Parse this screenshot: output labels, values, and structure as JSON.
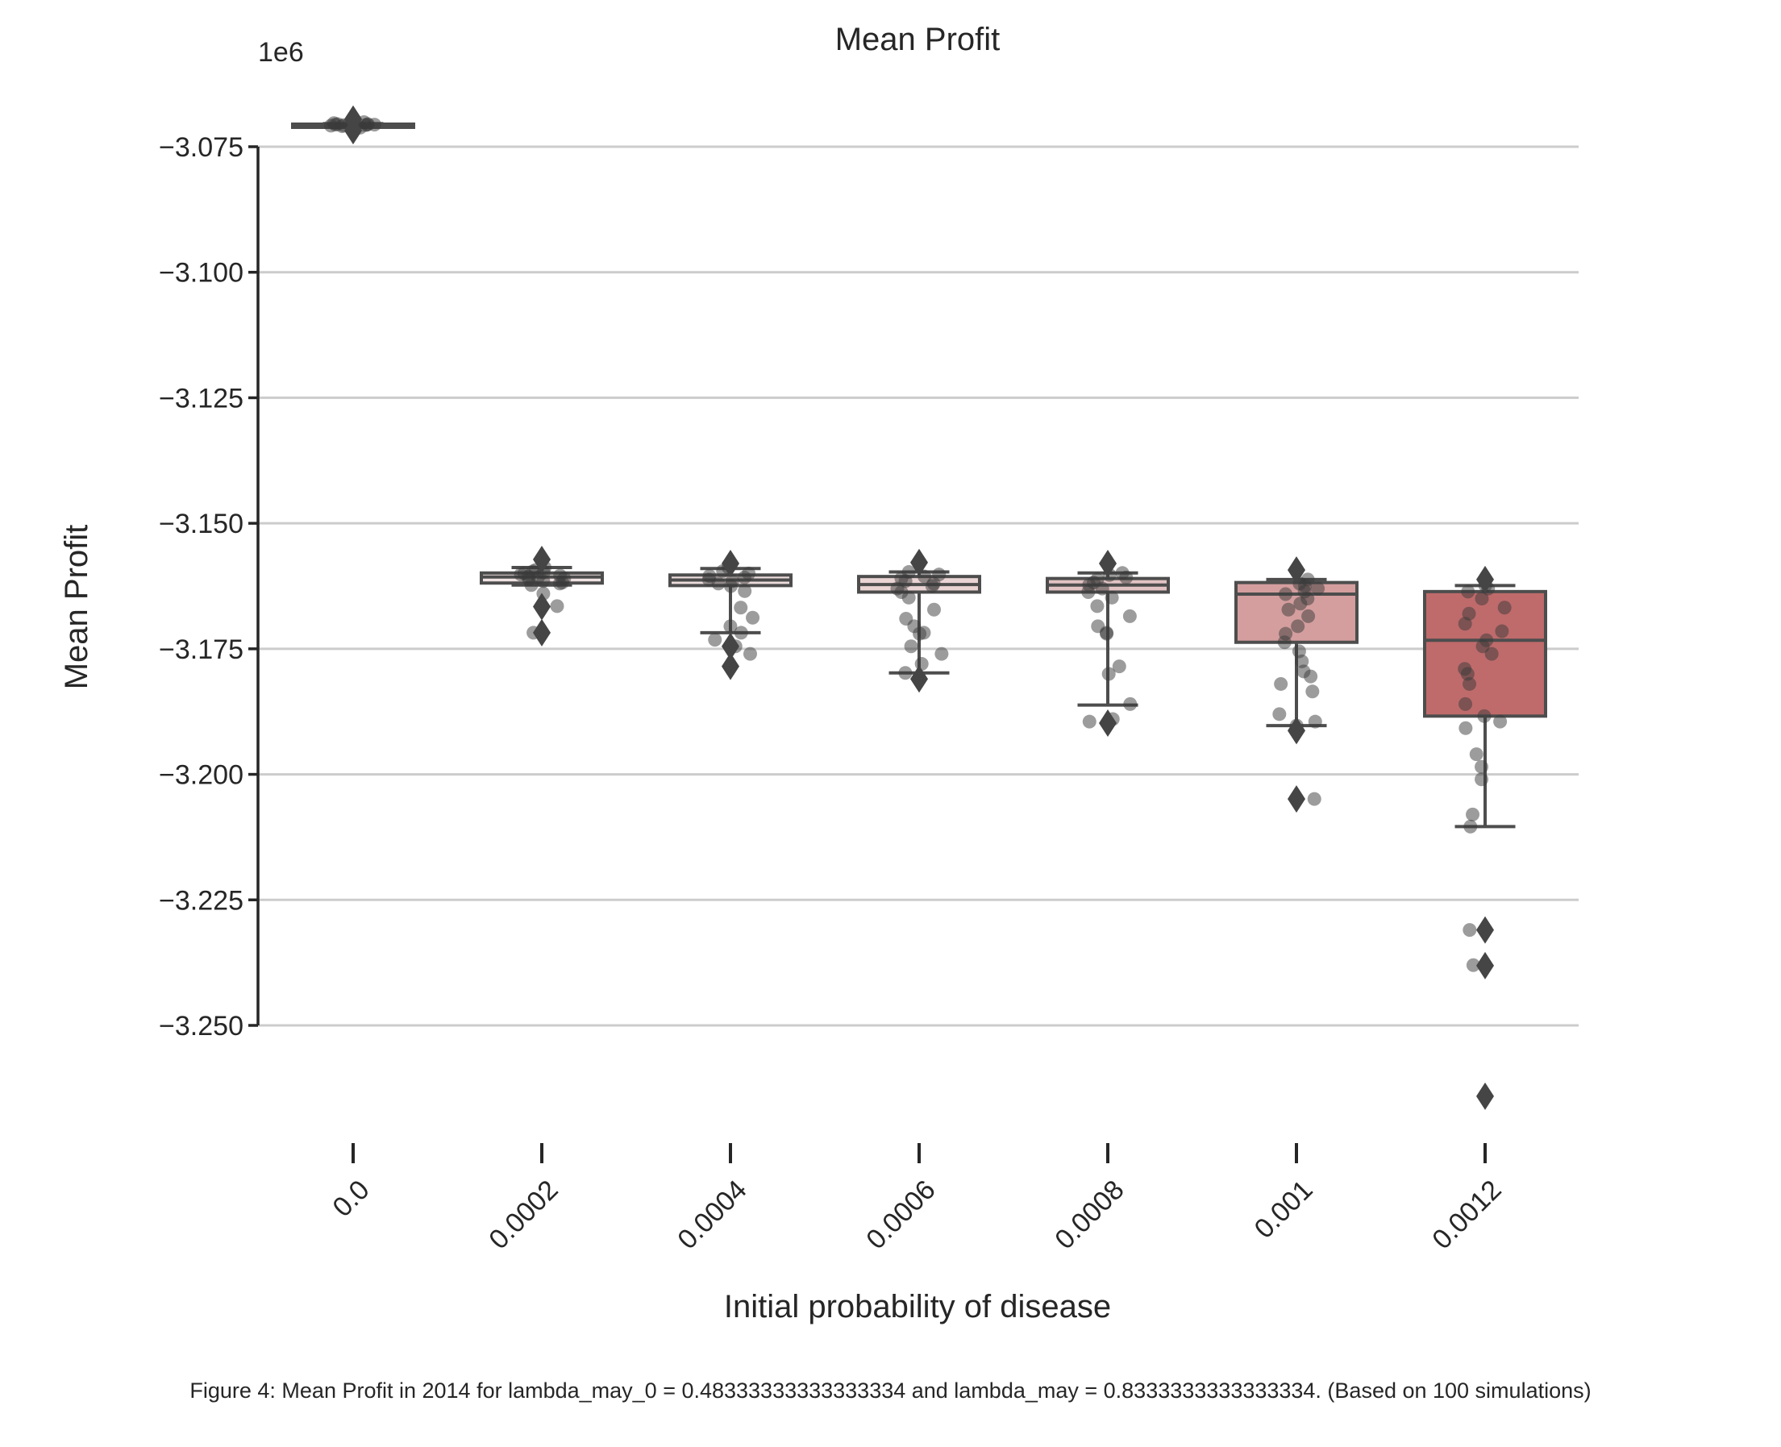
{
  "chart_data": {
    "type": "box",
    "title": "Mean Profit",
    "xlabel": "Initial probability of disease",
    "ylabel": "Mean Profit",
    "y_offset_text": "1e6",
    "ylim": [
      -3.2685,
      -3.0655
    ],
    "yticks": [
      -3.075,
      -3.1,
      -3.125,
      -3.15,
      -3.175,
      -3.2,
      -3.225,
      -3.25
    ],
    "ytick_labels": [
      "−3.075",
      "−3.100",
      "−3.125",
      "−3.150",
      "−3.175",
      "−3.200",
      "−3.225",
      "−3.250"
    ],
    "grid": "horizontal",
    "categories": [
      "0.0",
      "0.0002",
      "0.0004",
      "0.0006",
      "0.0008",
      "0.001",
      "0.0012"
    ],
    "boxes": [
      {
        "category": "0.0",
        "color": "#f5eeee",
        "q1": -3.0707,
        "median": -3.0706,
        "q3": -3.0705,
        "whisker_low": -3.0708,
        "whisker_high": -3.0704,
        "outliers": [
          -3.0695,
          -3.0718
        ],
        "points": [
          -3.0701,
          -3.0703,
          -3.0704,
          -3.0705,
          -3.0705,
          -3.0706,
          -3.0706,
          -3.0706,
          -3.0707,
          -3.0707,
          -3.0708,
          -3.0709,
          -3.0712,
          -3.0698
        ]
      },
      {
        "category": "0.0002",
        "color": "#f0e3e3",
        "q1": -3.1619,
        "median": -3.1607,
        "q3": -3.1599,
        "whisker_low": -3.1623,
        "whisker_high": -3.1588,
        "outliers": [
          -3.1572,
          -3.1666,
          -3.1718
        ],
        "points": [
          -3.1588,
          -3.1593,
          -3.1596,
          -3.1598,
          -3.16,
          -3.1602,
          -3.1604,
          -3.1606,
          -3.1608,
          -3.161,
          -3.1612,
          -3.1615,
          -3.1618,
          -3.162,
          -3.1623,
          -3.164,
          -3.1665,
          -3.1718
        ]
      },
      {
        "category": "0.0004",
        "color": "#ecdcdc",
        "q1": -3.1624,
        "median": -3.1613,
        "q3": -3.1603,
        "whisker_low": -3.1718,
        "whisker_high": -3.159,
        "outliers": [
          -3.158,
          -3.1745,
          -3.1785
        ],
        "points": [
          -3.1588,
          -3.1595,
          -3.16,
          -3.1605,
          -3.1608,
          -3.1612,
          -3.1615,
          -3.162,
          -3.1625,
          -3.1635,
          -3.1668,
          -3.1688,
          -3.1705,
          -3.1718,
          -3.1732,
          -3.1745,
          -3.176
        ]
      },
      {
        "category": "0.0006",
        "color": "#ead4d4",
        "q1": -3.1637,
        "median": -3.1622,
        "q3": -3.1606,
        "whisker_low": -3.1798,
        "whisker_high": -3.1597,
        "outliers": [
          -3.1578,
          -3.181
        ],
        "points": [
          -3.1597,
          -3.1602,
          -3.1606,
          -3.161,
          -3.1615,
          -3.162,
          -3.1625,
          -3.163,
          -3.1637,
          -3.1648,
          -3.1672,
          -3.169,
          -3.1705,
          -3.1718,
          -3.172,
          -3.1745,
          -3.176,
          -3.178,
          -3.1798
        ]
      },
      {
        "category": "0.0008",
        "color": "#e2c3c3",
        "q1": -3.1637,
        "median": -3.1623,
        "q3": -3.161,
        "whisker_low": -3.1862,
        "whisker_high": -3.1599,
        "outliers": [
          -3.158,
          -3.1898
        ],
        "points": [
          -3.1599,
          -3.1603,
          -3.1608,
          -3.1612,
          -3.1618,
          -3.1623,
          -3.163,
          -3.1637,
          -3.1648,
          -3.1665,
          -3.1685,
          -3.1705,
          -3.1718,
          -3.172,
          -3.1785,
          -3.18,
          -3.186,
          -3.189,
          -3.1895
        ]
      },
      {
        "category": "0.001",
        "color": "#d49e9e",
        "q1": -3.1737,
        "median": -3.1641,
        "q3": -3.1618,
        "whisker_low": -3.1903,
        "whisker_high": -3.1612,
        "outliers": [
          -3.1593,
          -3.1913,
          -3.2049
        ],
        "points": [
          -3.1612,
          -3.162,
          -3.1625,
          -3.163,
          -3.1636,
          -3.1641,
          -3.165,
          -3.166,
          -3.1672,
          -3.1685,
          -3.1705,
          -3.172,
          -3.1737,
          -3.1755,
          -3.1775,
          -3.1795,
          -3.1805,
          -3.182,
          -3.1835,
          -3.188,
          -3.1895,
          -3.1903,
          -3.2049
        ]
      },
      {
        "category": "0.0012",
        "color": "#bf6b6b",
        "q1": -3.1884,
        "median": -3.1733,
        "q3": -3.1636,
        "whisker_low": -3.2104,
        "whisker_high": -3.1624,
        "outliers": [
          -3.1612,
          -3.231,
          -3.2381,
          -3.2641
        ],
        "points": [
          -3.1624,
          -3.163,
          -3.1636,
          -3.165,
          -3.1668,
          -3.168,
          -3.17,
          -3.1715,
          -3.1733,
          -3.1745,
          -3.176,
          -3.179,
          -3.18,
          -3.182,
          -3.186,
          -3.1884,
          -3.1895,
          -3.1908,
          -3.196,
          -3.1985,
          -3.201,
          -3.208,
          -3.2104,
          -3.231,
          -3.238
        ]
      }
    ]
  },
  "caption": "Figure 4: Mean Profit in 2014 for lambda_may_0 = 0.48333333333333334 and lambda_may = 0.8333333333333334. (Based on 100 simulations)"
}
